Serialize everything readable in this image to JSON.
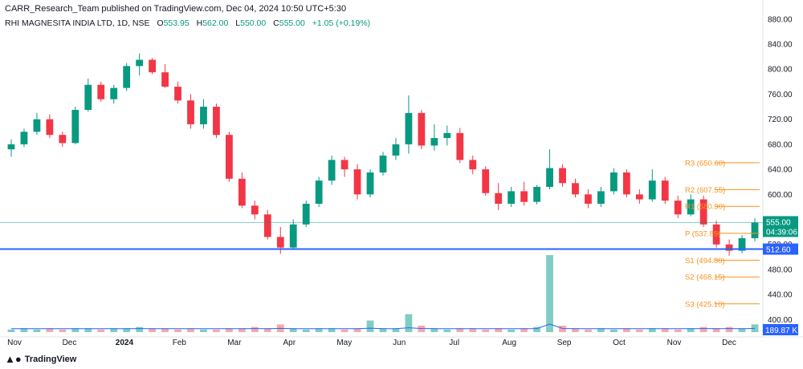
{
  "header": {
    "publish_line": "CARR_Research_Team published on TradingView.com, Dec 04, 2024 10:50 UTC+5:30",
    "symbol": "RHI MAGNESITA INDIA LTD, 1D, NSE",
    "ohlc": {
      "o_label": "O",
      "o": "553.95",
      "h_label": "H",
      "h": "562.00",
      "l_label": "L",
      "l": "550.00",
      "c_label": "C",
      "c": "555.00",
      "change": "+1.05 (+0.19%)"
    }
  },
  "branding": {
    "logo_text": "TradingView",
    "logo_icon": "tradingview-logo-icon"
  },
  "colors": {
    "up": "#089981",
    "down": "#f23645",
    "pivot": "#f7931a",
    "support_line": "#2962ff",
    "last_price": "#089981",
    "volume_line": "#2962ff"
  },
  "chart_data": {
    "type": "candlestick",
    "x_tick_labels": [
      "Nov",
      "Dec",
      "2024",
      "Feb",
      "Mar",
      "Apr",
      "May",
      "Jun",
      "Jul",
      "Aug",
      "Sep",
      "Oct",
      "Nov",
      "Dec"
    ],
    "y_ticks": [
      880,
      840,
      800,
      760,
      720,
      680,
      640,
      600,
      560,
      520,
      480,
      440,
      400
    ],
    "ylim": [
      380,
      890
    ],
    "candles": [
      {
        "month": "Nov",
        "o": 672,
        "h": 688,
        "l": 660,
        "c": 680
      },
      {
        "month": "Nov",
        "o": 680,
        "h": 705,
        "l": 676,
        "c": 700
      },
      {
        "month": "Nov",
        "o": 700,
        "h": 730,
        "l": 695,
        "c": 720
      },
      {
        "month": "Nov",
        "o": 720,
        "h": 728,
        "l": 690,
        "c": 695
      },
      {
        "month": "Dec",
        "o": 695,
        "h": 700,
        "l": 676,
        "c": 682
      },
      {
        "month": "Dec",
        "o": 682,
        "h": 740,
        "l": 680,
        "c": 735
      },
      {
        "month": "Dec",
        "o": 735,
        "h": 785,
        "l": 732,
        "c": 775
      },
      {
        "month": "Dec",
        "o": 775,
        "h": 780,
        "l": 748,
        "c": 752
      },
      {
        "month": "Dec",
        "o": 752,
        "h": 775,
        "l": 745,
        "c": 770
      },
      {
        "month": "Dec",
        "o": 770,
        "h": 810,
        "l": 765,
        "c": 805
      },
      {
        "month": "2024",
        "o": 805,
        "h": 825,
        "l": 790,
        "c": 815
      },
      {
        "month": "2024",
        "o": 815,
        "h": 818,
        "l": 792,
        "c": 795
      },
      {
        "month": "2024",
        "o": 795,
        "h": 808,
        "l": 770,
        "c": 772
      },
      {
        "month": "2024",
        "o": 772,
        "h": 780,
        "l": 745,
        "c": 750
      },
      {
        "month": "Feb",
        "o": 750,
        "h": 760,
        "l": 705,
        "c": 712
      },
      {
        "month": "Feb",
        "o": 712,
        "h": 752,
        "l": 705,
        "c": 740
      },
      {
        "month": "Feb",
        "o": 740,
        "h": 745,
        "l": 690,
        "c": 695
      },
      {
        "month": "Feb",
        "o": 695,
        "h": 700,
        "l": 620,
        "c": 625
      },
      {
        "month": "Feb",
        "o": 625,
        "h": 635,
        "l": 578,
        "c": 582
      },
      {
        "month": "Mar",
        "o": 582,
        "h": 590,
        "l": 560,
        "c": 568
      },
      {
        "month": "Mar",
        "o": 568,
        "h": 575,
        "l": 528,
        "c": 532
      },
      {
        "month": "Mar",
        "o": 532,
        "h": 548,
        "l": 505,
        "c": 515
      },
      {
        "month": "Mar",
        "o": 515,
        "h": 560,
        "l": 512,
        "c": 552
      },
      {
        "month": "Apr",
        "o": 552,
        "h": 590,
        "l": 548,
        "c": 585
      },
      {
        "month": "Apr",
        "o": 585,
        "h": 628,
        "l": 580,
        "c": 622
      },
      {
        "month": "Apr",
        "o": 622,
        "h": 662,
        "l": 615,
        "c": 655
      },
      {
        "month": "Apr",
        "o": 655,
        "h": 660,
        "l": 628,
        "c": 640
      },
      {
        "month": "May",
        "o": 640,
        "h": 648,
        "l": 592,
        "c": 600
      },
      {
        "month": "May",
        "o": 600,
        "h": 640,
        "l": 595,
        "c": 635
      },
      {
        "month": "May",
        "o": 635,
        "h": 668,
        "l": 630,
        "c": 662
      },
      {
        "month": "May",
        "o": 662,
        "h": 690,
        "l": 655,
        "c": 680
      },
      {
        "month": "May",
        "o": 680,
        "h": 758,
        "l": 665,
        "c": 730
      },
      {
        "month": "Jun",
        "o": 730,
        "h": 735,
        "l": 672,
        "c": 678
      },
      {
        "month": "Jun",
        "o": 678,
        "h": 712,
        "l": 670,
        "c": 690
      },
      {
        "month": "Jun",
        "o": 690,
        "h": 710,
        "l": 678,
        "c": 698
      },
      {
        "month": "Jun",
        "o": 698,
        "h": 706,
        "l": 650,
        "c": 655
      },
      {
        "month": "Jul",
        "o": 655,
        "h": 662,
        "l": 632,
        "c": 640
      },
      {
        "month": "Jul",
        "o": 640,
        "h": 645,
        "l": 598,
        "c": 602
      },
      {
        "month": "Jul",
        "o": 602,
        "h": 618,
        "l": 575,
        "c": 585
      },
      {
        "month": "Jul",
        "o": 585,
        "h": 612,
        "l": 580,
        "c": 605
      },
      {
        "month": "Aug",
        "o": 605,
        "h": 620,
        "l": 582,
        "c": 588
      },
      {
        "month": "Aug",
        "o": 588,
        "h": 615,
        "l": 584,
        "c": 612
      },
      {
        "month": "Aug",
        "o": 612,
        "h": 672,
        "l": 608,
        "c": 642
      },
      {
        "month": "Aug",
        "o": 642,
        "h": 648,
        "l": 612,
        "c": 618
      },
      {
        "month": "Sep",
        "o": 618,
        "h": 625,
        "l": 595,
        "c": 600
      },
      {
        "month": "Sep",
        "o": 600,
        "h": 608,
        "l": 578,
        "c": 585
      },
      {
        "month": "Sep",
        "o": 585,
        "h": 612,
        "l": 580,
        "c": 605
      },
      {
        "month": "Sep",
        "o": 605,
        "h": 642,
        "l": 600,
        "c": 635
      },
      {
        "month": "Oct",
        "o": 635,
        "h": 640,
        "l": 595,
        "c": 600
      },
      {
        "month": "Oct",
        "o": 600,
        "h": 608,
        "l": 585,
        "c": 592
      },
      {
        "month": "Oct",
        "o": 592,
        "h": 640,
        "l": 588,
        "c": 622
      },
      {
        "month": "Oct",
        "o": 622,
        "h": 628,
        "l": 585,
        "c": 590
      },
      {
        "month": "Oct",
        "o": 590,
        "h": 598,
        "l": 562,
        "c": 568
      },
      {
        "month": "Nov",
        "o": 568,
        "h": 600,
        "l": 565,
        "c": 592
      },
      {
        "month": "Nov",
        "o": 592,
        "h": 598,
        "l": 548,
        "c": 552
      },
      {
        "month": "Nov",
        "o": 552,
        "h": 558,
        "l": 515,
        "c": 520
      },
      {
        "month": "Nov",
        "o": 520,
        "h": 528,
        "l": 502,
        "c": 510
      },
      {
        "month": "Dec",
        "o": 510,
        "h": 535,
        "l": 506,
        "c": 530
      },
      {
        "month": "Dec",
        "o": 530,
        "h": 562,
        "l": 525,
        "c": 555
      }
    ],
    "volume": [
      2,
      3,
      2,
      3,
      2,
      3,
      3,
      2,
      3,
      3,
      4,
      3,
      3,
      2,
      3,
      2,
      2,
      3,
      3,
      4,
      3,
      6,
      3,
      2,
      3,
      3,
      2,
      3,
      9,
      3,
      3,
      14,
      5,
      3,
      2,
      3,
      3,
      2,
      3,
      2,
      3,
      4,
      60,
      5,
      3,
      2,
      3,
      2,
      3,
      2,
      3,
      3,
      2,
      3,
      4,
      3,
      4,
      3,
      6
    ],
    "pivot_levels": [
      {
        "name": "R3",
        "label": "R3 (650.60)",
        "value": 650.6
      },
      {
        "name": "R2",
        "label": "R2 (607.55)",
        "value": 607.55
      },
      {
        "name": "R1",
        "label": "R1 (580.90)",
        "value": 580.9
      },
      {
        "name": "P",
        "label": "P (537.85)",
        "value": 537.85
      },
      {
        "name": "S1",
        "label": "S1 (494.80)",
        "value": 494.8
      },
      {
        "name": "S2",
        "label": "S2 (468.15)",
        "value": 468.15
      },
      {
        "name": "S3",
        "label": "S3 (425.10)",
        "value": 425.1
      }
    ],
    "support_line": {
      "value": 512.6,
      "label": "512.60"
    },
    "last_price": {
      "value": 555.0,
      "label": "555.00",
      "countdown": "04:39:06"
    },
    "volume_label": "189.87 K"
  }
}
